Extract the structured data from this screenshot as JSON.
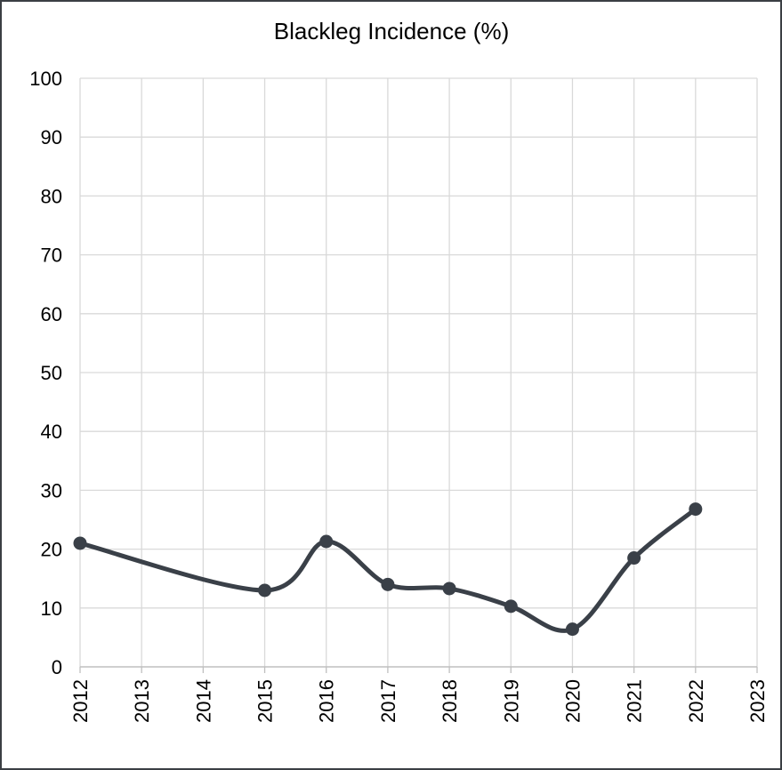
{
  "chart_data": {
    "type": "line",
    "title": "Blackleg Incidence (%)",
    "xlabel": "",
    "ylabel": "",
    "x_ticks": [
      "2012",
      "2013",
      "2014",
      "2015",
      "2016",
      "2017",
      "2018",
      "2019",
      "2020",
      "2021",
      "2022",
      "2023"
    ],
    "y_ticks": [
      "0",
      "10",
      "20",
      "30",
      "40",
      "50",
      "60",
      "70",
      "80",
      "90",
      "100"
    ],
    "xlim": [
      2012,
      2023
    ],
    "ylim": [
      0,
      100
    ],
    "grid": true,
    "legend": "none",
    "smooth": true,
    "series": [
      {
        "color": "#3a4048",
        "points": [
          {
            "x": 2012,
            "y": 21.0
          },
          {
            "x": 2015,
            "y": 13.0
          },
          {
            "x": 2016,
            "y": 21.3
          },
          {
            "x": 2017,
            "y": 14.0
          },
          {
            "x": 2018,
            "y": 13.3
          },
          {
            "x": 2019,
            "y": 10.3
          },
          {
            "x": 2020,
            "y": 6.4
          },
          {
            "x": 2021,
            "y": 18.5
          },
          {
            "x": 2022,
            "y": 26.8
          }
        ]
      }
    ],
    "colors": {
      "grid": "#d9d9d9",
      "axis": "#bfbfbf",
      "border": "#3b3f44"
    }
  }
}
